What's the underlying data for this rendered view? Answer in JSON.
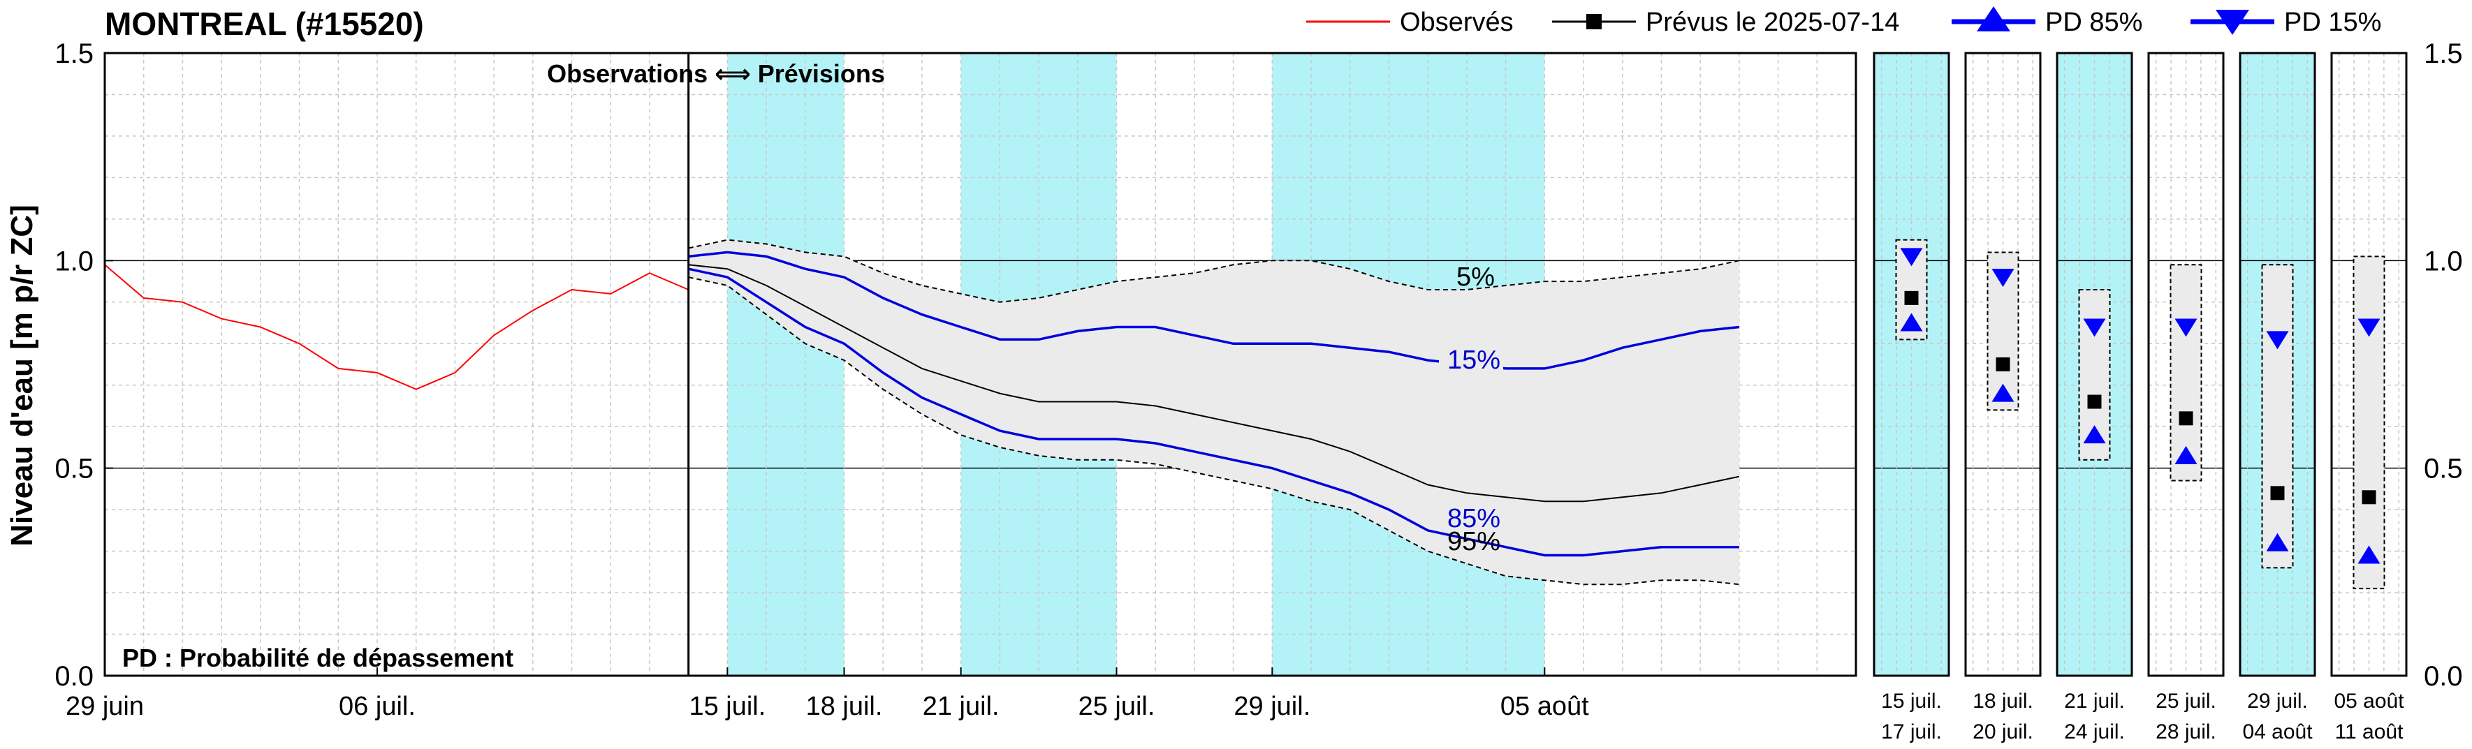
{
  "chart_data": {
    "type": "line",
    "title": "MONTREAL (#15520)",
    "ylabel": "Niveau d'eau [m p/r ZC]",
    "ylim": [
      0.0,
      1.5
    ],
    "yticks": [
      "0.0",
      "0.5",
      "1.0",
      "1.5"
    ],
    "grid": true,
    "legend_position": "top-right",
    "legend": {
      "observed": "Observés",
      "forecast": "Prévus le 2025-07-14",
      "pd85": "PD 85%",
      "pd15": "PD 15%"
    },
    "annotations": {
      "split": "Observations ⟺ Prévisions",
      "pd_note": "PD : Probabilité de dépassement",
      "pct5": "5%",
      "pct15": "15%",
      "pct85": "85%",
      "pct95": "95%"
    },
    "x_start": "2025-06-29",
    "x_end": "2025-08-13",
    "x_ticks": [
      {
        "date": "2025-06-29",
        "label": "29 juin"
      },
      {
        "date": "2025-07-06",
        "label": "06 juil."
      },
      {
        "date": "2025-07-15",
        "label": "15 juil."
      },
      {
        "date": "2025-07-18",
        "label": "18 juil."
      },
      {
        "date": "2025-07-21",
        "label": "21 juil."
      },
      {
        "date": "2025-07-25",
        "label": "25 juil."
      },
      {
        "date": "2025-07-29",
        "label": "29 juil."
      },
      {
        "date": "2025-08-05",
        "label": "05 août"
      }
    ],
    "forecast_start": "2025-07-14",
    "shaded_periods": [
      {
        "start": "2025-07-15",
        "end": "2025-07-18"
      },
      {
        "start": "2025-07-21",
        "end": "2025-07-25"
      },
      {
        "start": "2025-07-29",
        "end": "2025-08-05"
      }
    ],
    "observed": [
      [
        "2025-06-29",
        0.99
      ],
      [
        "2025-06-30",
        0.91
      ],
      [
        "2025-07-01",
        0.9
      ],
      [
        "2025-07-02",
        0.86
      ],
      [
        "2025-07-03",
        0.84
      ],
      [
        "2025-07-04",
        0.8
      ],
      [
        "2025-07-05",
        0.74
      ],
      [
        "2025-07-06",
        0.73
      ],
      [
        "2025-07-07",
        0.69
      ],
      [
        "2025-07-08",
        0.73
      ],
      [
        "2025-07-09",
        0.82
      ],
      [
        "2025-07-10",
        0.88
      ],
      [
        "2025-07-11",
        0.93
      ],
      [
        "2025-07-12",
        0.92
      ],
      [
        "2025-07-13",
        0.97
      ],
      [
        "2025-07-14",
        0.93
      ]
    ],
    "band_upper": [
      [
        "2025-07-14",
        1.03
      ],
      [
        "2025-07-15",
        1.05
      ],
      [
        "2025-07-16",
        1.04
      ],
      [
        "2025-07-17",
        1.02
      ],
      [
        "2025-07-18",
        1.01
      ],
      [
        "2025-07-19",
        0.97
      ],
      [
        "2025-07-20",
        0.94
      ],
      [
        "2025-07-21",
        0.92
      ],
      [
        "2025-07-22",
        0.9
      ],
      [
        "2025-07-23",
        0.91
      ],
      [
        "2025-07-24",
        0.93
      ],
      [
        "2025-07-25",
        0.95
      ],
      [
        "2025-07-26",
        0.96
      ],
      [
        "2025-07-27",
        0.97
      ],
      [
        "2025-07-28",
        0.99
      ],
      [
        "2025-07-29",
        1.0
      ],
      [
        "2025-07-30",
        1.0
      ],
      [
        "2025-07-31",
        0.98
      ],
      [
        "2025-08-01",
        0.95
      ],
      [
        "2025-08-02",
        0.93
      ],
      [
        "2025-08-03",
        0.93
      ],
      [
        "2025-08-04",
        0.94
      ],
      [
        "2025-08-05",
        0.95
      ],
      [
        "2025-08-06",
        0.95
      ],
      [
        "2025-08-07",
        0.96
      ],
      [
        "2025-08-08",
        0.97
      ],
      [
        "2025-08-09",
        0.98
      ],
      [
        "2025-08-10",
        1.0
      ]
    ],
    "band_lower": [
      [
        "2025-07-14",
        0.96
      ],
      [
        "2025-07-15",
        0.94
      ],
      [
        "2025-07-16",
        0.87
      ],
      [
        "2025-07-17",
        0.8
      ],
      [
        "2025-07-18",
        0.76
      ],
      [
        "2025-07-19",
        0.69
      ],
      [
        "2025-07-20",
        0.63
      ],
      [
        "2025-07-21",
        0.58
      ],
      [
        "2025-07-22",
        0.55
      ],
      [
        "2025-07-23",
        0.53
      ],
      [
        "2025-07-24",
        0.52
      ],
      [
        "2025-07-25",
        0.52
      ],
      [
        "2025-07-26",
        0.51
      ],
      [
        "2025-07-27",
        0.49
      ],
      [
        "2025-07-28",
        0.47
      ],
      [
        "2025-07-29",
        0.45
      ],
      [
        "2025-07-30",
        0.42
      ],
      [
        "2025-07-31",
        0.4
      ],
      [
        "2025-08-01",
        0.35
      ],
      [
        "2025-08-02",
        0.3
      ],
      [
        "2025-08-03",
        0.27
      ],
      [
        "2025-08-04",
        0.24
      ],
      [
        "2025-08-05",
        0.23
      ],
      [
        "2025-08-06",
        0.22
      ],
      [
        "2025-08-07",
        0.22
      ],
      [
        "2025-08-08",
        0.23
      ],
      [
        "2025-08-09",
        0.23
      ],
      [
        "2025-08-10",
        0.22
      ]
    ],
    "median": [
      [
        "2025-07-14",
        0.99
      ],
      [
        "2025-07-15",
        0.98
      ],
      [
        "2025-07-16",
        0.94
      ],
      [
        "2025-07-17",
        0.89
      ],
      [
        "2025-07-18",
        0.84
      ],
      [
        "2025-07-19",
        0.79
      ],
      [
        "2025-07-20",
        0.74
      ],
      [
        "2025-07-21",
        0.71
      ],
      [
        "2025-07-22",
        0.68
      ],
      [
        "2025-07-23",
        0.66
      ],
      [
        "2025-07-24",
        0.66
      ],
      [
        "2025-07-25",
        0.66
      ],
      [
        "2025-07-26",
        0.65
      ],
      [
        "2025-07-27",
        0.63
      ],
      [
        "2025-07-28",
        0.61
      ],
      [
        "2025-07-29",
        0.59
      ],
      [
        "2025-07-30",
        0.57
      ],
      [
        "2025-07-31",
        0.54
      ],
      [
        "2025-08-01",
        0.5
      ],
      [
        "2025-08-02",
        0.46
      ],
      [
        "2025-08-03",
        0.44
      ],
      [
        "2025-08-04",
        0.43
      ],
      [
        "2025-08-05",
        0.42
      ],
      [
        "2025-08-06",
        0.42
      ],
      [
        "2025-08-07",
        0.43
      ],
      [
        "2025-08-08",
        0.44
      ],
      [
        "2025-08-09",
        0.46
      ],
      [
        "2025-08-10",
        0.48
      ]
    ],
    "pd15_curve": [
      [
        "2025-07-14",
        1.01
      ],
      [
        "2025-07-15",
        1.02
      ],
      [
        "2025-07-16",
        1.01
      ],
      [
        "2025-07-17",
        0.98
      ],
      [
        "2025-07-18",
        0.96
      ],
      [
        "2025-07-19",
        0.91
      ],
      [
        "2025-07-20",
        0.87
      ],
      [
        "2025-07-21",
        0.84
      ],
      [
        "2025-07-22",
        0.81
      ],
      [
        "2025-07-23",
        0.81
      ],
      [
        "2025-07-24",
        0.83
      ],
      [
        "2025-07-25",
        0.84
      ],
      [
        "2025-07-26",
        0.84
      ],
      [
        "2025-07-27",
        0.82
      ],
      [
        "2025-07-28",
        0.8
      ],
      [
        "2025-07-29",
        0.8
      ],
      [
        "2025-07-30",
        0.8
      ],
      [
        "2025-07-31",
        0.79
      ],
      [
        "2025-08-01",
        0.78
      ],
      [
        "2025-08-02",
        0.76
      ],
      [
        "2025-08-03",
        0.75
      ],
      [
        "2025-08-04",
        0.74
      ],
      [
        "2025-08-05",
        0.74
      ],
      [
        "2025-08-06",
        0.76
      ],
      [
        "2025-08-07",
        0.79
      ],
      [
        "2025-08-08",
        0.81
      ],
      [
        "2025-08-09",
        0.83
      ],
      [
        "2025-08-10",
        0.84
      ]
    ],
    "pd85_curve": [
      [
        "2025-07-14",
        0.98
      ],
      [
        "2025-07-15",
        0.96
      ],
      [
        "2025-07-16",
        0.9
      ],
      [
        "2025-07-17",
        0.84
      ],
      [
        "2025-07-18",
        0.8
      ],
      [
        "2025-07-19",
        0.73
      ],
      [
        "2025-07-20",
        0.67
      ],
      [
        "2025-07-21",
        0.63
      ],
      [
        "2025-07-22",
        0.59
      ],
      [
        "2025-07-23",
        0.57
      ],
      [
        "2025-07-24",
        0.57
      ],
      [
        "2025-07-25",
        0.57
      ],
      [
        "2025-07-26",
        0.56
      ],
      [
        "2025-07-27",
        0.54
      ],
      [
        "2025-07-28",
        0.52
      ],
      [
        "2025-07-29",
        0.5
      ],
      [
        "2025-07-30",
        0.47
      ],
      [
        "2025-07-31",
        0.44
      ],
      [
        "2025-08-01",
        0.4
      ],
      [
        "2025-08-02",
        0.35
      ],
      [
        "2025-08-03",
        0.33
      ],
      [
        "2025-08-04",
        0.31
      ],
      [
        "2025-08-05",
        0.29
      ],
      [
        "2025-08-06",
        0.29
      ],
      [
        "2025-08-07",
        0.3
      ],
      [
        "2025-08-08",
        0.31
      ],
      [
        "2025-08-09",
        0.31
      ],
      [
        "2025-08-10",
        0.31
      ]
    ],
    "weekly_panels": [
      {
        "period": [
          "15 juil.",
          "17 juil."
        ],
        "shaded": true,
        "pd15": 1.01,
        "forecast": 0.91,
        "pd85": 0.85,
        "box_top": 1.05,
        "box_bottom": 0.81
      },
      {
        "period": [
          "18 juil.",
          "20 juil."
        ],
        "shaded": false,
        "pd15": 0.96,
        "forecast": 0.75,
        "pd85": 0.68,
        "box_top": 1.02,
        "box_bottom": 0.64
      },
      {
        "period": [
          "21 juil.",
          "24 juil."
        ],
        "shaded": true,
        "pd15": 0.84,
        "forecast": 0.66,
        "pd85": 0.58,
        "box_top": 0.93,
        "box_bottom": 0.52
      },
      {
        "period": [
          "25 juil.",
          "28 juil."
        ],
        "shaded": false,
        "pd15": 0.84,
        "forecast": 0.62,
        "pd85": 0.53,
        "box_top": 0.99,
        "box_bottom": 0.47
      },
      {
        "period": [
          "29 juil.",
          "04 août"
        ],
        "shaded": true,
        "pd15": 0.81,
        "forecast": 0.44,
        "pd85": 0.32,
        "box_top": 0.99,
        "box_bottom": 0.26
      },
      {
        "period": [
          "05 août",
          "11 août"
        ],
        "shaded": false,
        "pd15": 0.84,
        "forecast": 0.43,
        "pd85": 0.29,
        "box_top": 1.01,
        "box_bottom": 0.21
      }
    ]
  },
  "colors": {
    "observed": "#ff0000",
    "pd_curve": "#0000dd",
    "marker_pd": "#0000ff",
    "shade": "#b3f3f7",
    "band": "#ebebeb",
    "grid": "#c8c8c8"
  }
}
